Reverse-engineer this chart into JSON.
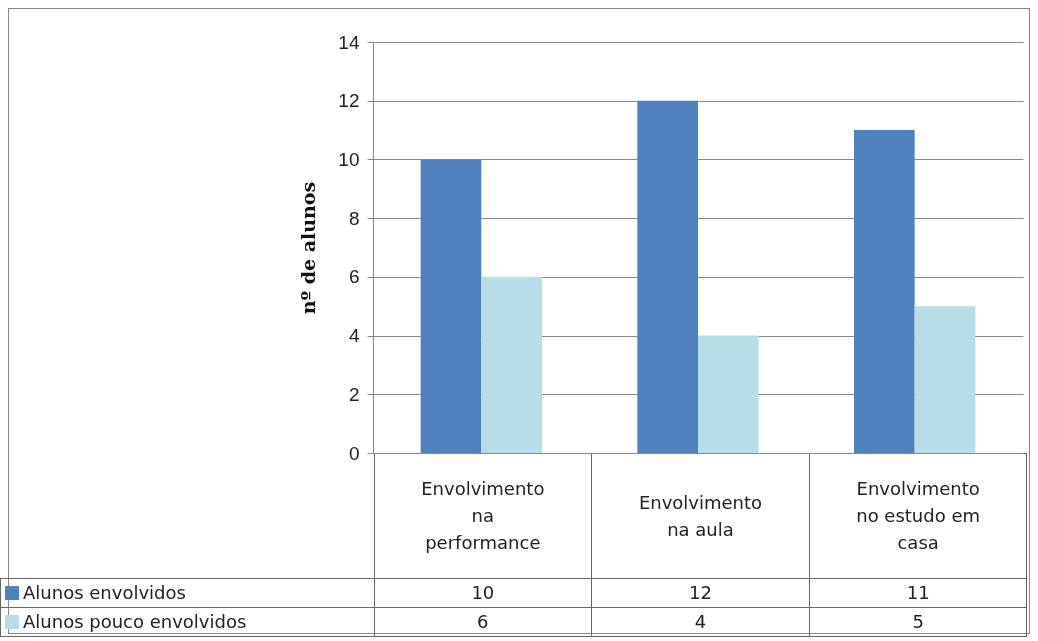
{
  "chart_data": {
    "type": "bar",
    "ylabel": "nº de alunos",
    "categories": [
      "Envolvimento na performance",
      "Envolvimento na aula",
      "Envolvimento no estudo em casa"
    ],
    "series": [
      {
        "name": "Alunos envolvidos",
        "color": "#4f81bd",
        "values": [
          10,
          12,
          11
        ]
      },
      {
        "name": "Alunos pouco envolvidos",
        "color": "#b7dee8",
        "values": [
          6,
          4,
          5
        ]
      }
    ],
    "ylim": [
      0,
      14
    ],
    "yticks": [
      0,
      2,
      4,
      6,
      8,
      10,
      12,
      14
    ],
    "grid": "y",
    "legend": "bottom",
    "data_labels": true
  }
}
